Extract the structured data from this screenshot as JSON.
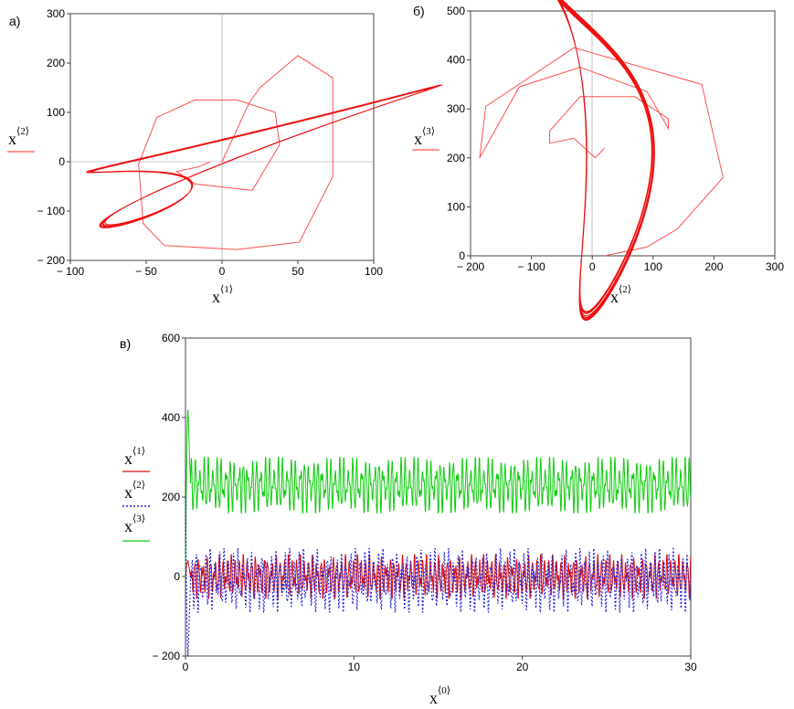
{
  "chart_data": [
    {
      "panel": "а)",
      "type": "line",
      "xlabel": {
        "base": "x",
        "sup": "⟨1⟩"
      },
      "ylabel": {
        "base": "x",
        "sup": "⟨2⟩"
      },
      "xlim": [
        -100,
        100
      ],
      "ylim": [
        -200,
        300
      ],
      "xticks": [
        "− 100",
        "− 50",
        "0",
        "50",
        "100"
      ],
      "yticks": [
        "− 200",
        "− 100",
        "0",
        "100",
        "200",
        "300"
      ],
      "series": [
        {
          "color": "#ff5050",
          "transient": [
            [
              0,
              0
            ],
            [
              18,
              120
            ],
            [
              25,
              150
            ],
            [
              50,
              215
            ],
            [
              73,
              170
            ],
            [
              73,
              -30
            ],
            [
              51,
              -163
            ],
            [
              10,
              -178
            ],
            [
              -38,
              -170
            ],
            [
              -52,
              -125
            ],
            [
              -55,
              -5
            ],
            [
              -43,
              90
            ],
            [
              -18,
              125
            ],
            [
              10,
              125
            ],
            [
              35,
              100
            ],
            [
              38,
              35
            ],
            [
              20,
              -58
            ],
            [
              -18,
              -45
            ],
            [
              -30,
              -20
            ],
            [
              -15,
              -10
            ],
            [
              -8,
              0
            ]
          ],
          "attractor_x": {
            "a": [
              -40,
              -27,
              36,
              28
            ],
            "b": [
              70,
              -60,
              40,
              30
            ]
          },
          "attractor_y": {
            "a": [
              -90,
              -40,
              60,
              70
            ],
            "b": [
              60,
              -40,
              40,
              15
            ]
          }
        }
      ]
    },
    {
      "panel": "б)",
      "type": "line",
      "xlabel": {
        "base": "x",
        "sup": "⟨2⟩"
      },
      "ylabel": {
        "base": "x",
        "sup": "⟨3⟩"
      },
      "xlim": [
        -200,
        300
      ],
      "ylim": [
        0,
        500
      ],
      "xticks": [
        "− 200",
        "− 100",
        "0",
        "100",
        "200",
        "300"
      ],
      "yticks": [
        "0",
        "100",
        "200",
        "300",
        "400",
        "500"
      ],
      "series": [
        {
          "color": "#ff5050",
          "transient": [
            [
              20,
              0
            ],
            [
              90,
              18
            ],
            [
              140,
              55
            ],
            [
              215,
              160
            ],
            [
              180,
              350
            ],
            [
              -30,
              425
            ],
            [
              -175,
              305
            ],
            [
              -185,
              200
            ],
            [
              -120,
              345
            ],
            [
              -20,
              385
            ],
            [
              90,
              335
            ],
            [
              125,
              260
            ],
            [
              125,
              280
            ],
            [
              70,
              325
            ],
            [
              -20,
              325
            ],
            [
              -70,
              255
            ],
            [
              -70,
              230
            ],
            [
              -30,
              240
            ],
            [
              5,
              200
            ],
            [
              20,
              220
            ]
          ],
          "attractor_x": {
            "a": [
              -60,
              15,
              15,
              25
            ],
            "b": [
              10,
              -35,
              65,
              45
            ]
          },
          "attractor_y": {
            "a": [
              205,
              35,
              40,
              70
            ],
            "b": [
              255,
              -25,
              30,
              20
            ]
          }
        }
      ]
    },
    {
      "panel": "в)",
      "type": "line",
      "xlabel": {
        "base": "x",
        "sup": "⟨0⟩"
      },
      "xlim": [
        0,
        30
      ],
      "ylim": [
        -200,
        600
      ],
      "xticks": [
        "0",
        "10",
        "20",
        "30"
      ],
      "yticks": [
        "− 200",
        "0",
        "200",
        "400",
        "600"
      ],
      "legend": "left",
      "series": [
        {
          "name": "x⟨1⟩",
          "legend_base": "x",
          "legend_sup": "⟨1⟩",
          "color": "#dd1010",
          "style": "solid",
          "center": 0,
          "amp": 55,
          "start": 0,
          "peak": 40
        },
        {
          "name": "x⟨2⟩",
          "legend_base": "x",
          "legend_sup": "⟨2⟩",
          "color": "#2222dd",
          "style": "dotted",
          "center": -10,
          "amp": 80,
          "start": 200,
          "peak": -200
        },
        {
          "name": "x⟨3⟩",
          "legend_base": "x",
          "legend_sup": "⟨3⟩",
          "color": "#10cc10",
          "style": "solid",
          "center": 230,
          "amp": 70,
          "start": 0,
          "peak": 420
        }
      ]
    }
  ]
}
